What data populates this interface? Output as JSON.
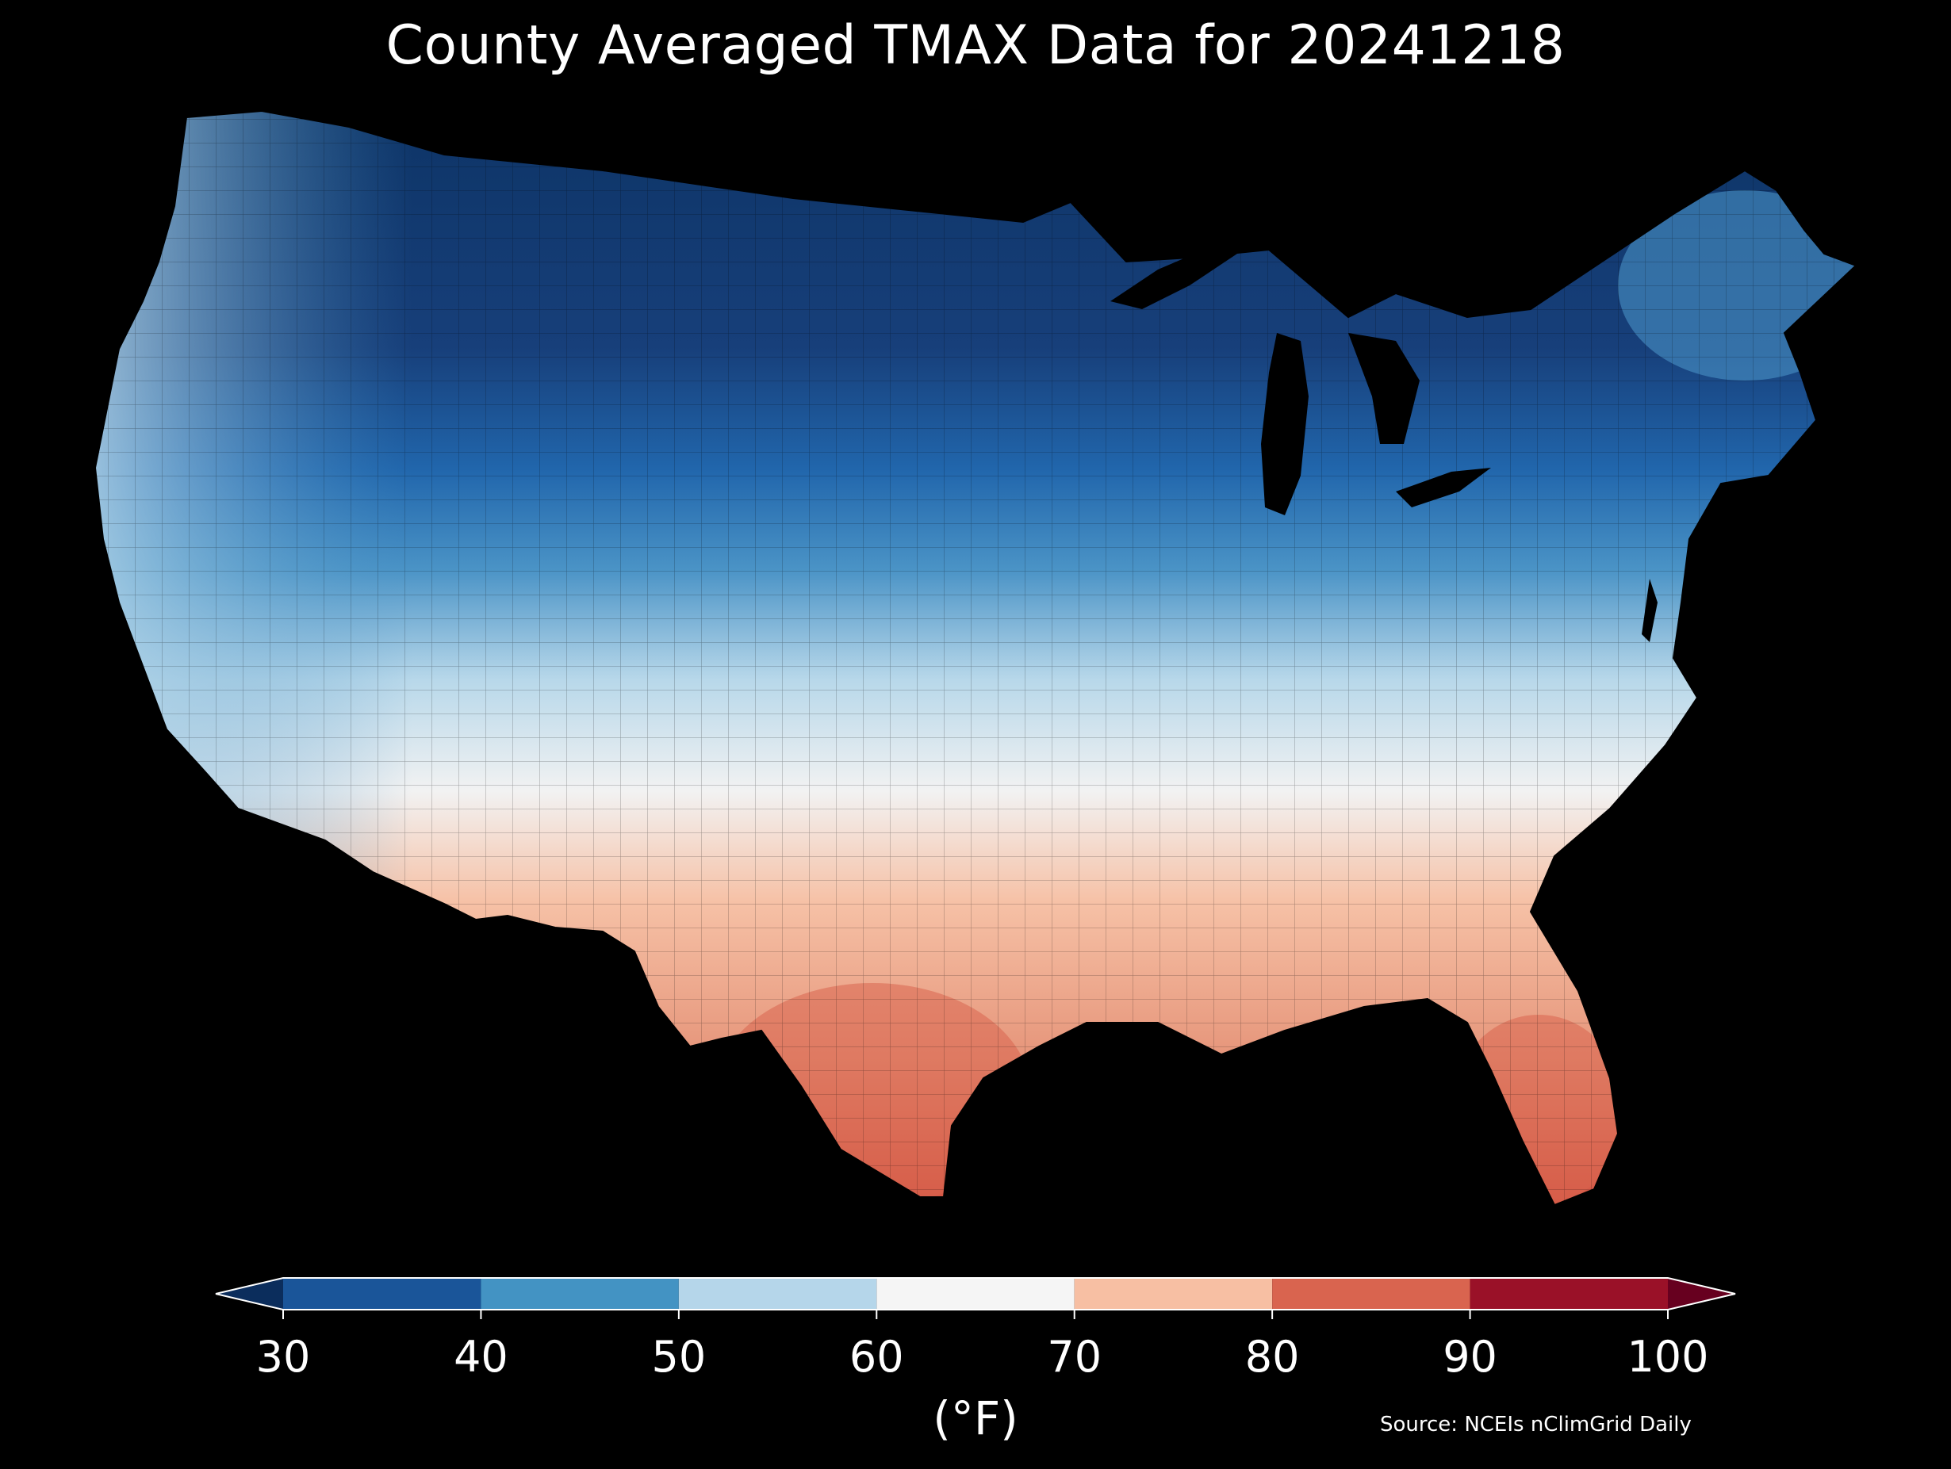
{
  "title": "County Averaged TMAX Data for 20241218",
  "colorbar": {
    "ticks": [
      "30",
      "40",
      "50",
      "60",
      "70",
      "80",
      "90",
      "100"
    ],
    "units": "(°F)",
    "bins": [
      {
        "from": 30,
        "to": 40,
        "color": "#1a5599"
      },
      {
        "from": 40,
        "to": 50,
        "color": "#4393c3"
      },
      {
        "from": 50,
        "to": 60,
        "color": "#b5d6ea"
      },
      {
        "from": 60,
        "to": 70,
        "color": "#f5f5f5"
      },
      {
        "from": 70,
        "to": 80,
        "color": "#f7bfa3"
      },
      {
        "from": 80,
        "to": 90,
        "color": "#d9644f"
      },
      {
        "from": 90,
        "to": 100,
        "color": "#9a1128"
      }
    ],
    "extend_low_color": "#0b2d5c",
    "extend_high_color": "#67001f"
  },
  "source": "Source: NCEIs nClimGrid Daily",
  "map": {
    "region": "Contiguous United States",
    "variable": "TMAX",
    "colors": {
      "background": "#000000",
      "coldest": "#0d3466",
      "cold": "#2166ac",
      "cool": "#4a93c6",
      "mild": "#b8d8ea",
      "neutral": "#f2f2f2",
      "warm": "#f6c1a6",
      "hot": "#e08064",
      "hottest": "#d2503f"
    }
  }
}
